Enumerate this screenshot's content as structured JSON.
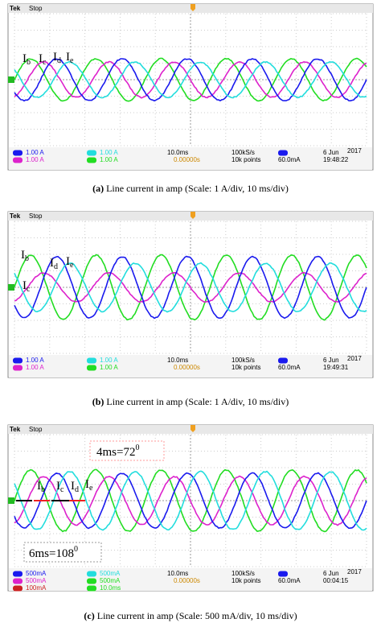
{
  "panels": [
    {
      "tek": "Tek",
      "mode": "Stop",
      "traces": [
        {
          "base": "I",
          "sub": "b"
        },
        {
          "base": "I",
          "sub": "c"
        },
        {
          "base": "I",
          "sub": "d"
        },
        {
          "base": "I",
          "sub": "e"
        }
      ],
      "ch": [
        "1.00 A",
        "1.00 A",
        "1.00 A",
        "1.00 A"
      ],
      "timebase": "10.0ms",
      "rate": "100kS/s",
      "points": "10k points",
      "trig_pos": "0.00000s",
      "trig_level": "60.0mA",
      "date": "6 Jun",
      "year": "2017",
      "time": "19:48:22",
      "caption": {
        "tag": "(a)",
        "text": "Line current in amp (Scale: 1 A/div, 10 ms/div)"
      }
    },
    {
      "tek": "Tek",
      "mode": "Stop",
      "traces": [
        {
          "base": "I",
          "sub": "b"
        },
        {
          "base": "I",
          "sub": "c"
        },
        {
          "base": "I",
          "sub": "d"
        },
        {
          "base": "I",
          "sub": "e"
        }
      ],
      "ch": [
        "1.00 A",
        "1.00 A",
        "1.00 A",
        "1.00 A"
      ],
      "timebase": "10.0ms",
      "rate": "100kS/s",
      "points": "10k points",
      "trig_pos": "0.00000s",
      "trig_level": "60.0mA",
      "date": "6 Jun",
      "year": "2017",
      "time": "19:49:31",
      "caption": {
        "tag": "(b)",
        "text": "Line current in amp (Scale: 1 A/div, 10 ms/div)"
      }
    },
    {
      "tek": "Tek",
      "mode": "Stop",
      "traces": [
        {
          "base": "I",
          "sub": "b"
        },
        {
          "base": "I",
          "sub": "c"
        },
        {
          "base": "I",
          "sub": "d"
        },
        {
          "base": "I",
          "sub": "e"
        }
      ],
      "ch": [
        "500mA",
        "500mA",
        "500mA",
        "500mA",
        "100mA",
        "10.0ms"
      ],
      "timebase": "10.0ms",
      "rate": "100kS/s",
      "points": "10k points",
      "trig_pos": "0.00000s",
      "trig_level": "60.0mA",
      "date": "6 Jun",
      "year": "2017",
      "time": "00:04:15",
      "annotations": [
        {
          "text": "4ms=72",
          "sup": "0"
        },
        {
          "text": "6ms=108",
          "sup": "0"
        }
      ],
      "caption": {
        "tag": "(c)",
        "text": "Line current in amp (Scale: 500 mA/div, 10 ms/div)"
      }
    }
  ]
}
